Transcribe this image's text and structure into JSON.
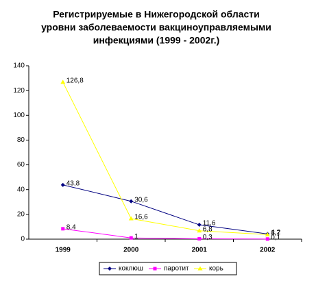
{
  "chart_data": {
    "type": "line",
    "title": [
      "Регистрируемые в Нижегородской области",
      "уровни заболеваемости вакциноуправляемыми",
      "инфекциями (1999 - 2002г.)"
    ],
    "categories": [
      "1999",
      "2000",
      "2001",
      "2002"
    ],
    "series": [
      {
        "name": "коклюш",
        "color": "#000080",
        "marker": "diamond",
        "values": [
          43.8,
          30.6,
          11.6,
          4.2
        ],
        "value_labels": [
          "43,8",
          "30,6",
          "11,6",
          "4,2"
        ]
      },
      {
        "name": "паротит",
        "color": "#ff00ff",
        "marker": "square",
        "values": [
          8.4,
          1,
          0.3,
          0.1
        ],
        "value_labels": [
          "8,4",
          "1",
          "0,3",
          "0,1"
        ]
      },
      {
        "name": "корь",
        "color": "#ffff00",
        "marker": "triangle",
        "values": [
          126.8,
          16.6,
          6.8,
          3.7
        ],
        "value_labels": [
          "126,8",
          "16,6",
          "6,8",
          "3,7"
        ]
      }
    ],
    "ylim": [
      0,
      140
    ],
    "yticks": [
      0,
      20,
      40,
      60,
      80,
      100,
      120,
      140
    ],
    "grid": false,
    "legend": "bottom"
  }
}
